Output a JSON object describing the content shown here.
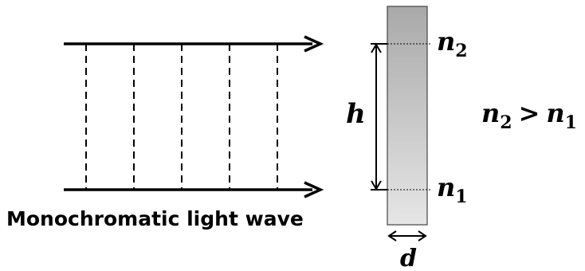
{
  "diagram": {
    "wave_label": "Monochromatic light wave",
    "label_h": "h",
    "label_d": "d",
    "top_index": {
      "symbol": "n",
      "subscript": "2"
    },
    "bottom_index": {
      "symbol": "n",
      "subscript": "1"
    },
    "inequality": {
      "left_symbol": "n",
      "left_subscript": "2",
      "operator": ">",
      "right_symbol": "n",
      "right_subscript": "1"
    },
    "colors": {
      "stroke": "#000000",
      "plate_gradient_top": "#a9a9a9",
      "plate_gradient_bottom": "#e6e6e6"
    }
  }
}
